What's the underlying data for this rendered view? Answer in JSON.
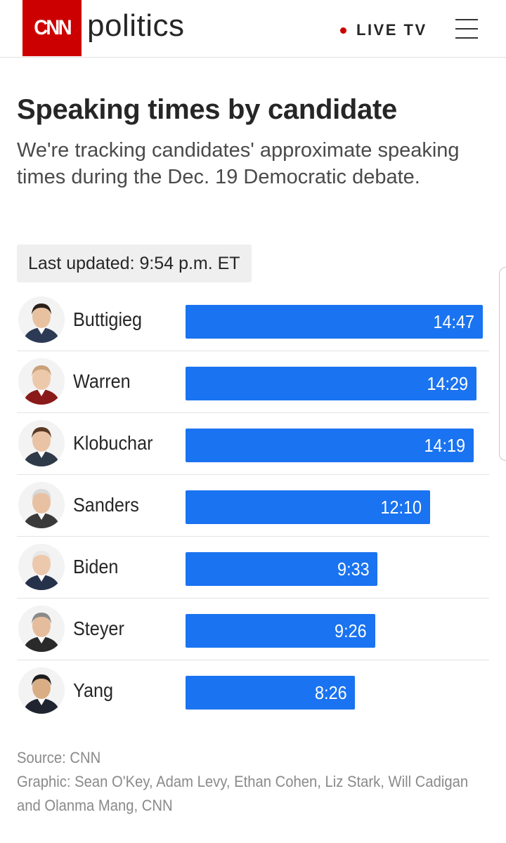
{
  "header": {
    "logo_text": "CNN",
    "section": "politics",
    "live_label": "LIVE TV",
    "accent_color": "#cc0000"
  },
  "title": "Speaking times by candidate",
  "subtitle": "We're tracking candidates' approximate speaking times during the Dec. 19 Democratic debate.",
  "last_updated": "Last updated: 9:54 p.m. ET",
  "chart_data": {
    "type": "bar",
    "orientation": "horizontal",
    "bar_color": "#1a73f0",
    "categories": [
      "Buttigieg",
      "Warren",
      "Klobuchar",
      "Sanders",
      "Biden",
      "Steyer",
      "Yang"
    ],
    "values_seconds": [
      887,
      869,
      859,
      730,
      573,
      566,
      506
    ],
    "labels": [
      "14:47",
      "14:29",
      "14:19",
      "12:10",
      "9:33",
      "9:26",
      "8:26"
    ],
    "xlim_seconds": [
      0,
      887
    ]
  },
  "footer": {
    "source": "Source: CNN",
    "credits": "Graphic: Sean O'Key, Adam Levy, Ethan Cohen, Liz Stark, Will Cadigan and Olanma Mang, CNN"
  }
}
